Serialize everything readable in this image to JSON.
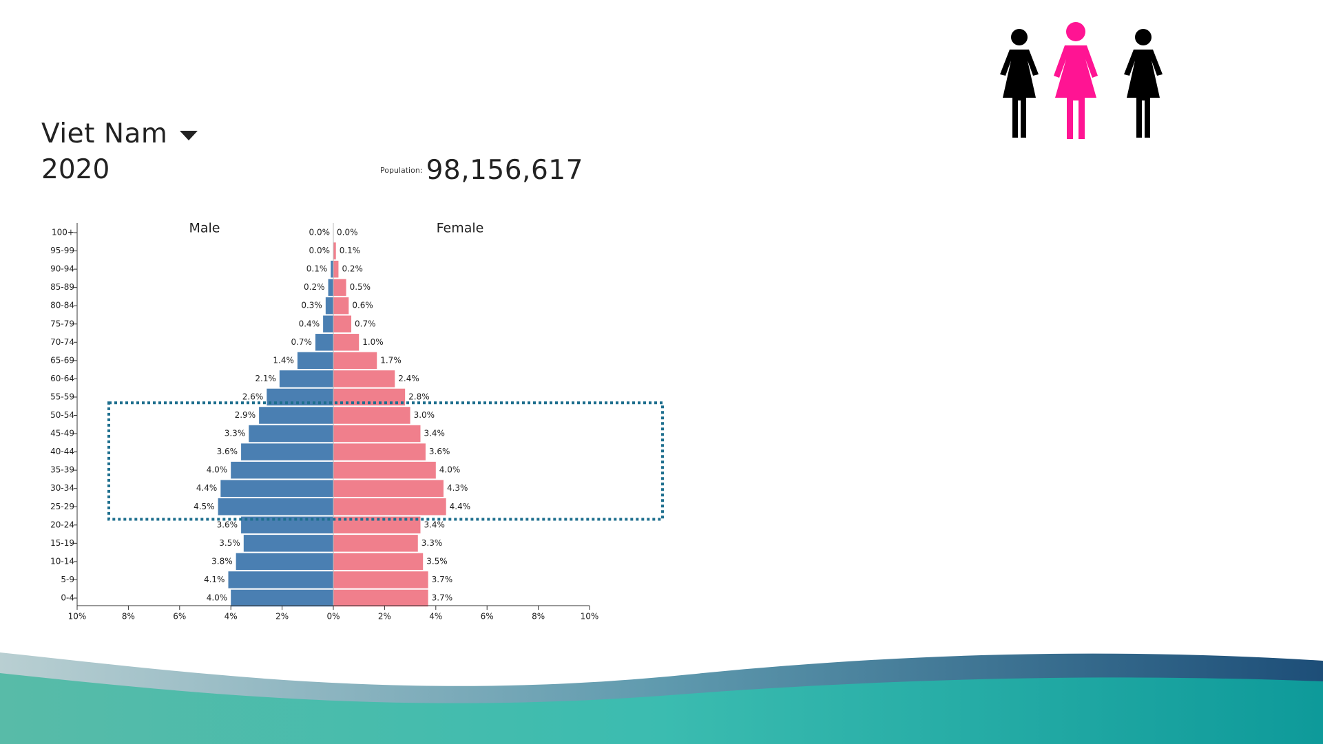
{
  "header": {
    "country": "Viet Nam",
    "year": "2020",
    "population_label": "Population:",
    "population_value": "98,156,617",
    "icons": [
      "dropdown-caret-icon",
      "person-icon",
      "female-person-icon",
      "person-icon"
    ]
  },
  "chart_data": {
    "type": "bar",
    "orientation": "horizontal",
    "categories": [
      "100+",
      "95-99",
      "90-94",
      "85-89",
      "80-84",
      "75-79",
      "70-74",
      "65-69",
      "60-64",
      "55-59",
      "50-54",
      "45-49",
      "40-44",
      "35-39",
      "30-34",
      "25-29",
      "20-24",
      "15-19",
      "10-14",
      "5-9",
      "0-4"
    ],
    "series": [
      {
        "name": "Male",
        "color": "#4a7fb2",
        "values": [
          0.0,
          0.0,
          0.1,
          0.2,
          0.3,
          0.4,
          0.7,
          1.4,
          2.1,
          2.6,
          2.9,
          3.3,
          3.6,
          4.0,
          4.4,
          4.5,
          3.6,
          3.5,
          3.8,
          4.1,
          4.0
        ],
        "labels": [
          "0.0%",
          "0.0%",
          "0.1%",
          "0.2%",
          "0.3%",
          "0.4%",
          "0.7%",
          "1.4%",
          "2.1%",
          "2.6%",
          "2.9%",
          "3.3%",
          "3.6%",
          "4.0%",
          "4.4%",
          "4.5%",
          "3.6%",
          "3.5%",
          "3.8%",
          "4.1%",
          "4.0%"
        ]
      },
      {
        "name": "Female",
        "color": "#f07f8c",
        "values": [
          0.0,
          0.1,
          0.2,
          0.5,
          0.6,
          0.7,
          1.0,
          1.7,
          2.4,
          2.8,
          3.0,
          3.4,
          3.6,
          4.0,
          4.3,
          4.4,
          3.4,
          3.3,
          3.5,
          3.7,
          3.7
        ],
        "labels": [
          "0.0%",
          "0.1%",
          "0.2%",
          "0.5%",
          "0.6%",
          "0.7%",
          "1.0%",
          "1.7%",
          "2.4%",
          "2.8%",
          "3.0%",
          "3.4%",
          "3.6%",
          "4.0%",
          "4.3%",
          "4.4%",
          "3.4%",
          "3.3%",
          "3.5%",
          "3.7%",
          "3.7%"
        ]
      }
    ],
    "x_ticks": [
      "10%",
      "8%",
      "6%",
      "4%",
      "2%",
      "0%",
      "2%",
      "4%",
      "6%",
      "8%",
      "10%"
    ],
    "xlim": [
      -10,
      10
    ],
    "highlight": {
      "from": "50-54",
      "to": "25-29",
      "color": "#1e6f8e",
      "style": "dotted"
    }
  }
}
